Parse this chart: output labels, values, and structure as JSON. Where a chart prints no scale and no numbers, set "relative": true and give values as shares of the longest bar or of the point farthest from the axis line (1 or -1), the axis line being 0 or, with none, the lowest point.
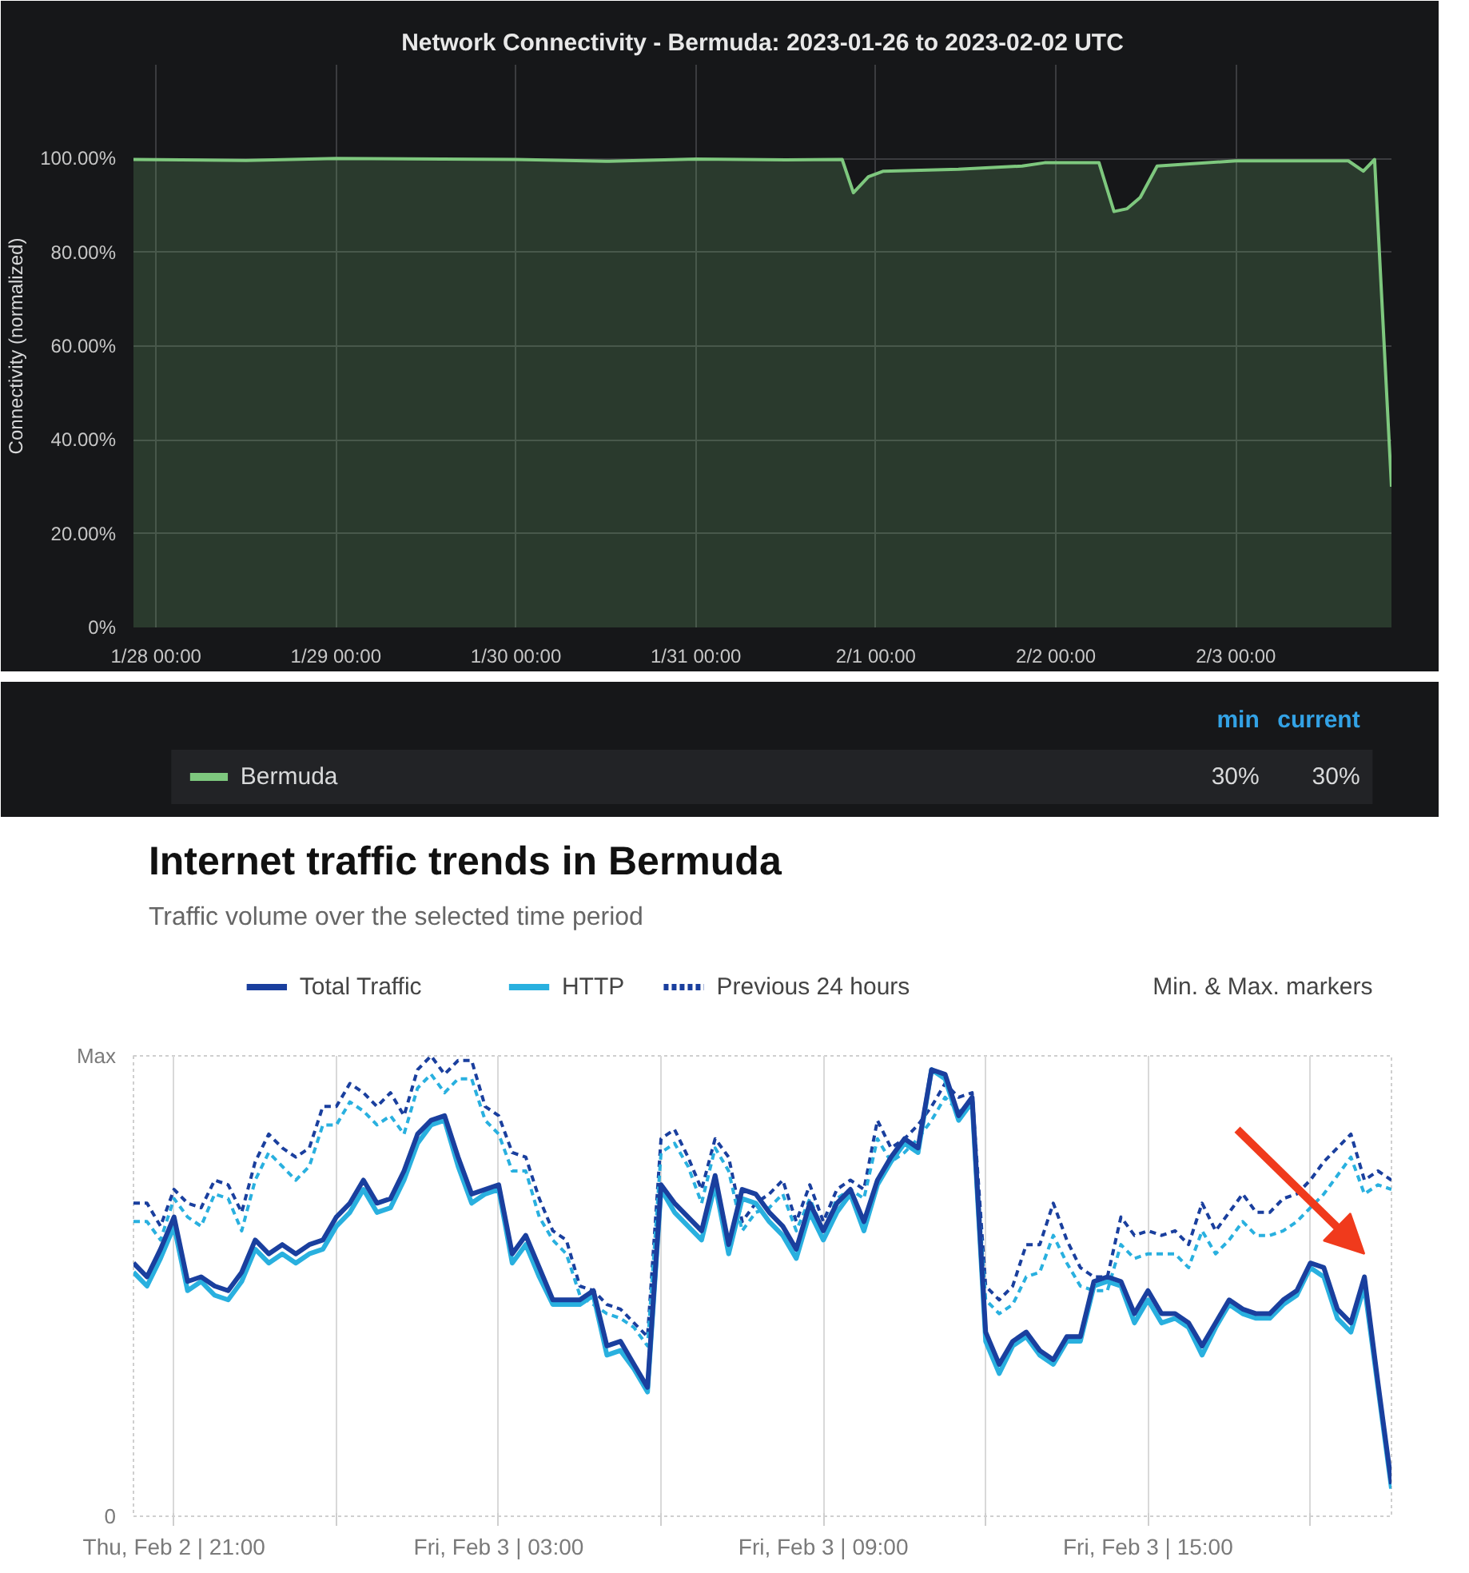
{
  "chart_data": [
    {
      "type": "area",
      "title": "Network Connectivity - Bermuda: 2023-01-26 to 2023-02-02 UTC",
      "ylabel": "Connectivity (normalized)",
      "x": [
        "2023-01-27T21:00",
        "2023-01-28T12:00",
        "2023-01-29T00:00",
        "2023-01-30T00:00",
        "2023-01-30T12:00",
        "2023-01-31T00:00",
        "2023-01-31T12:00",
        "2023-01-31T19:30",
        "2023-01-31T21:00",
        "2023-01-31T23:00",
        "2023-02-01T01:00",
        "2023-02-01T11:00",
        "2023-02-01T19:30",
        "2023-02-01T22:30",
        "2023-02-02T05:45",
        "2023-02-02T07:45",
        "2023-02-02T09:30",
        "2023-02-02T11:15",
        "2023-02-02T13:30",
        "2023-02-03T00:00",
        "2023-02-03T15:00",
        "2023-02-03T17:00",
        "2023-02-03T18:30",
        "2023-02-03T20:45"
      ],
      "series": [
        {
          "name": "Bermuda",
          "color": "#7ec87e",
          "values": [
            99.8,
            99.6,
            100,
            99.8,
            99.4,
            99.9,
            99.7,
            99.8,
            92.7,
            96.1,
            97.3,
            97.7,
            98.4,
            99.1,
            99.1,
            88.7,
            89.3,
            91.7,
            98.4,
            99.5,
            99.5,
            97.3,
            99.8,
            30
          ]
        }
      ],
      "xlim": [
        "2023-01-27T21:00",
        "2023-02-03T20:45"
      ],
      "xticks": [
        {
          "value": "2023-01-28T00:00",
          "label": "1/28 00:00"
        },
        {
          "value": "2023-01-29T00:00",
          "label": "1/29 00:00"
        },
        {
          "value": "2023-01-30T00:00",
          "label": "1/30 00:00"
        },
        {
          "value": "2023-01-31T00:00",
          "label": "1/31 00:00"
        },
        {
          "value": "2023-02-01T00:00",
          "label": "2/1 00:00"
        },
        {
          "value": "2023-02-02T00:00",
          "label": "2/2 00:00"
        },
        {
          "value": "2023-02-03T00:00",
          "label": "2/3 00:00"
        }
      ],
      "ylim": [
        0,
        120
      ],
      "yticks": [
        {
          "value": 0,
          "label": "0%"
        },
        {
          "value": 20,
          "label": "20.00%"
        },
        {
          "value": 40,
          "label": "40.00%"
        },
        {
          "value": 60,
          "label": "60.00%"
        },
        {
          "value": 80,
          "label": "80.00%"
        },
        {
          "value": 100,
          "label": "100.00%"
        }
      ],
      "grid": true,
      "legend": "bottom",
      "annotations": [
        "min",
        "current",
        "30%",
        "30%"
      ]
    },
    {
      "type": "line",
      "title": "Internet traffic trends in Bermuda",
      "subtitle": "Traffic volume over the selected time period",
      "x": [
        "2023-02-02T20:15",
        "2023-02-02T20:30",
        "2023-02-02T20:45",
        "2023-02-02T21:00",
        "2023-02-02T21:15",
        "2023-02-02T21:30",
        "2023-02-02T21:45",
        "2023-02-02T22:00",
        "2023-02-02T22:15",
        "2023-02-02T22:30",
        "2023-02-02T22:45",
        "2023-02-02T23:00",
        "2023-02-02T23:15",
        "2023-02-02T23:30",
        "2023-02-02T23:45",
        "2023-02-03T00:00",
        "2023-02-03T00:15",
        "2023-02-03T00:30",
        "2023-02-03T00:45",
        "2023-02-03T01:00",
        "2023-02-03T01:15",
        "2023-02-03T01:30",
        "2023-02-03T01:45",
        "2023-02-03T02:00",
        "2023-02-03T02:15",
        "2023-02-03T02:30",
        "2023-02-03T02:45",
        "2023-02-03T03:00",
        "2023-02-03T03:15",
        "2023-02-03T03:30",
        "2023-02-03T03:45",
        "2023-02-03T04:00",
        "2023-02-03T04:15",
        "2023-02-03T04:30",
        "2023-02-03T04:45",
        "2023-02-03T05:00",
        "2023-02-03T05:15",
        "2023-02-03T05:30",
        "2023-02-03T05:45",
        "2023-02-03T06:00",
        "2023-02-03T06:15",
        "2023-02-03T06:30",
        "2023-02-03T06:45",
        "2023-02-03T07:00",
        "2023-02-03T07:15",
        "2023-02-03T07:30",
        "2023-02-03T07:45",
        "2023-02-03T08:00",
        "2023-02-03T08:15",
        "2023-02-03T08:30",
        "2023-02-03T08:45",
        "2023-02-03T09:00",
        "2023-02-03T09:15",
        "2023-02-03T09:30",
        "2023-02-03T09:45",
        "2023-02-03T10:00",
        "2023-02-03T10:15",
        "2023-02-03T10:30",
        "2023-02-03T10:45",
        "2023-02-03T11:00",
        "2023-02-03T11:15",
        "2023-02-03T11:30",
        "2023-02-03T11:45",
        "2023-02-03T12:00",
        "2023-02-03T12:15",
        "2023-02-03T12:30",
        "2023-02-03T12:45",
        "2023-02-03T13:00",
        "2023-02-03T13:15",
        "2023-02-03T13:30",
        "2023-02-03T13:45",
        "2023-02-03T14:00",
        "2023-02-03T14:15",
        "2023-02-03T14:30",
        "2023-02-03T14:45",
        "2023-02-03T15:00",
        "2023-02-03T15:15",
        "2023-02-03T15:30",
        "2023-02-03T15:45",
        "2023-02-03T16:00",
        "2023-02-03T16:15",
        "2023-02-03T16:30",
        "2023-02-03T16:45",
        "2023-02-03T17:00",
        "2023-02-03T17:15",
        "2023-02-03T17:30",
        "2023-02-03T17:45",
        "2023-02-03T18:00",
        "2023-02-03T18:15",
        "2023-02-03T18:30",
        "2023-02-03T18:45",
        "2023-02-03T19:00",
        "2023-02-03T19:15",
        "2023-02-03T19:30"
      ],
      "series": [
        {
          "name": "Previous 24 hours",
          "color": "#1a3f9e",
          "line_style": "dashed",
          "values": [
            0.68,
            0.68,
            0.63,
            0.71,
            0.68,
            0.67,
            0.73,
            0.72,
            0.66,
            0.77,
            0.83,
            0.8,
            0.78,
            0.8,
            0.89,
            0.89,
            0.94,
            0.92,
            0.89,
            0.92,
            0.87,
            0.97,
            1.0,
            0.96,
            0.99,
            0.99,
            0.89,
            0.87,
            0.79,
            0.78,
            0.69,
            0.62,
            0.6,
            0.5,
            0.49,
            0.46,
            0.45,
            0.42,
            0.39,
            0.82,
            0.84,
            0.78,
            0.71,
            0.82,
            0.78,
            0.64,
            0.68,
            0.7,
            0.73,
            0.64,
            0.72,
            0.64,
            0.71,
            0.73,
            0.71,
            0.86,
            0.8,
            0.82,
            0.85,
            0.89,
            0.94,
            0.91,
            0.92,
            0.5,
            0.47,
            0.5,
            0.59,
            0.59,
            0.68,
            0.6,
            0.54,
            0.52,
            0.52,
            0.65,
            0.61,
            0.62,
            0.61,
            0.62,
            0.59,
            0.68,
            0.62,
            0.66,
            0.7,
            0.66,
            0.66,
            0.69,
            0.7,
            0.73,
            0.77,
            0.8,
            0.83,
            0.73,
            0.75,
            0.73
          ]
        },
        {
          "color": "#29b0df",
          "line_style": "dashed",
          "values": [
            0.64,
            0.64,
            0.6,
            0.69,
            0.65,
            0.63,
            0.7,
            0.69,
            0.62,
            0.73,
            0.79,
            0.76,
            0.73,
            0.76,
            0.85,
            0.85,
            0.9,
            0.88,
            0.85,
            0.87,
            0.83,
            0.93,
            0.96,
            0.92,
            0.95,
            0.95,
            0.86,
            0.83,
            0.75,
            0.75,
            0.65,
            0.6,
            0.57,
            0.48,
            0.46,
            0.44,
            0.43,
            0.41,
            0.37,
            0.79,
            0.81,
            0.76,
            0.68,
            0.8,
            0.75,
            0.62,
            0.66,
            0.67,
            0.7,
            0.62,
            0.69,
            0.62,
            0.69,
            0.71,
            0.69,
            0.82,
            0.77,
            0.79,
            0.82,
            0.86,
            0.91,
            0.88,
            0.89,
            0.47,
            0.44,
            0.46,
            0.52,
            0.53,
            0.61,
            0.55,
            0.5,
            0.49,
            0.49,
            0.59,
            0.56,
            0.57,
            0.57,
            0.57,
            0.54,
            0.62,
            0.57,
            0.6,
            0.64,
            0.61,
            0.61,
            0.62,
            0.64,
            0.67,
            0.7,
            0.74,
            0.78,
            0.7,
            0.72,
            0.71
          ]
        },
        {
          "name": "HTTP",
          "color": "#29b0df",
          "line_style": "solid",
          "values": [
            0.53,
            0.5,
            0.56,
            0.63,
            0.49,
            0.51,
            0.48,
            0.47,
            0.51,
            0.58,
            0.55,
            0.57,
            0.55,
            0.57,
            0.58,
            0.63,
            0.66,
            0.71,
            0.66,
            0.67,
            0.73,
            0.81,
            0.85,
            0.86,
            0.76,
            0.68,
            0.7,
            0.71,
            0.55,
            0.59,
            0.52,
            0.46,
            0.46,
            0.46,
            0.48,
            0.35,
            0.36,
            0.32,
            0.27,
            0.71,
            0.66,
            0.63,
            0.6,
            0.72,
            0.57,
            0.69,
            0.68,
            0.64,
            0.61,
            0.56,
            0.66,
            0.6,
            0.66,
            0.7,
            0.62,
            0.72,
            0.77,
            0.81,
            0.79,
            0.97,
            0.95,
            0.86,
            0.9,
            0.38,
            0.31,
            0.37,
            0.39,
            0.35,
            0.33,
            0.38,
            0.38,
            0.5,
            0.51,
            0.5,
            0.42,
            0.47,
            0.42,
            0.43,
            0.41,
            0.35,
            0.41,
            0.46,
            0.44,
            0.43,
            0.43,
            0.46,
            0.48,
            0.54,
            0.52,
            0.43,
            0.4,
            0.5,
            0.28,
            0.06
          ]
        },
        {
          "name": "Total Traffic",
          "color": "#1a3f9e",
          "line_style": "solid",
          "values": [
            0.55,
            0.52,
            0.58,
            0.65,
            0.51,
            0.52,
            0.5,
            0.49,
            0.53,
            0.6,
            0.57,
            0.59,
            0.57,
            0.59,
            0.6,
            0.65,
            0.68,
            0.73,
            0.68,
            0.69,
            0.75,
            0.83,
            0.86,
            0.87,
            0.78,
            0.7,
            0.71,
            0.72,
            0.57,
            0.61,
            0.54,
            0.47,
            0.47,
            0.47,
            0.49,
            0.37,
            0.38,
            0.33,
            0.28,
            0.72,
            0.68,
            0.65,
            0.62,
            0.74,
            0.59,
            0.71,
            0.7,
            0.66,
            0.63,
            0.58,
            0.68,
            0.62,
            0.68,
            0.71,
            0.64,
            0.73,
            0.78,
            0.82,
            0.8,
            0.97,
            0.96,
            0.87,
            0.91,
            0.4,
            0.33,
            0.38,
            0.4,
            0.36,
            0.34,
            0.39,
            0.39,
            0.51,
            0.52,
            0.51,
            0.44,
            0.49,
            0.44,
            0.44,
            0.42,
            0.37,
            0.42,
            0.47,
            0.45,
            0.44,
            0.44,
            0.47,
            0.49,
            0.55,
            0.54,
            0.45,
            0.42,
            0.52,
            0.29,
            0.07
          ]
        }
      ],
      "xlim": [
        "2023-02-02T20:15",
        "2023-02-03T19:30"
      ],
      "xticks": [
        {
          "value": "2023-02-02T21:00",
          "label": "Thu, Feb 2 | 21:00"
        },
        {
          "value": "2023-02-03T00:00",
          "label": null
        },
        {
          "value": "2023-02-03T03:00",
          "label": "Fri, Feb 3 | 03:00"
        },
        {
          "value": "2023-02-03T06:00",
          "label": null
        },
        {
          "value": "2023-02-03T09:00",
          "label": "Fri, Feb 3 | 09:00"
        },
        {
          "value": "2023-02-03T12:00",
          "label": null
        },
        {
          "value": "2023-02-03T15:00",
          "label": "Fri, Feb 3 | 15:00"
        },
        {
          "value": "2023-02-03T18:00",
          "label": null
        }
      ],
      "relative": true,
      "grid": "x",
      "legend": "top left",
      "annotations": [
        "Max",
        "0",
        "Min. & Max. markers"
      ]
    }
  ]
}
